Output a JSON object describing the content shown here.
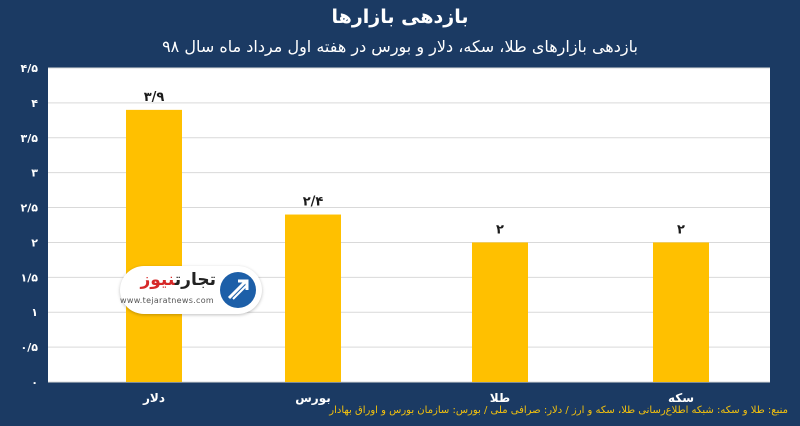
{
  "chart_data": {
    "type": "bar",
    "title": "بازدهی بازارها",
    "subtitle": "بازدهی بازارهای طلا، سکه، دلار و بورس در هفته اول مرداد ماه سال ۹۸",
    "categories": [
      "دلار",
      "بورس",
      "طلا",
      "سکه"
    ],
    "values": [
      3.9,
      2.4,
      2,
      2
    ],
    "value_labels": [
      "۳/۹",
      "۲/۴",
      "۲",
      "۲"
    ],
    "ylim": [
      0,
      4.5
    ],
    "y_ticks": [
      0,
      0.5,
      1,
      1.5,
      2,
      2.5,
      3,
      3.5,
      4,
      4.5
    ],
    "y_tick_labels": [
      "۰",
      "۰/۵",
      "۱",
      "۱/۵",
      "۲",
      "۲/۵",
      "۳",
      "۳/۵",
      "۴",
      "۴/۵"
    ],
    "grid": true,
    "colors": {
      "bar": "#ffc000",
      "plot_background": "#ffffff",
      "page_background": "#1b3a63",
      "grid": "#d9d9d9"
    }
  },
  "source": "منبع: طلا و سکه: شبکه اطلاع‌رسانی طلا، سکه و ارز / دلار: صرافی ملی / بورس: سازمان بورس و اوراق بهادار",
  "watermark": {
    "name_main": "تجارت",
    "name_accent": "نیوز",
    "url": "www.tejaratnews.com",
    "icon": "tejarat-news-logo-icon"
  }
}
